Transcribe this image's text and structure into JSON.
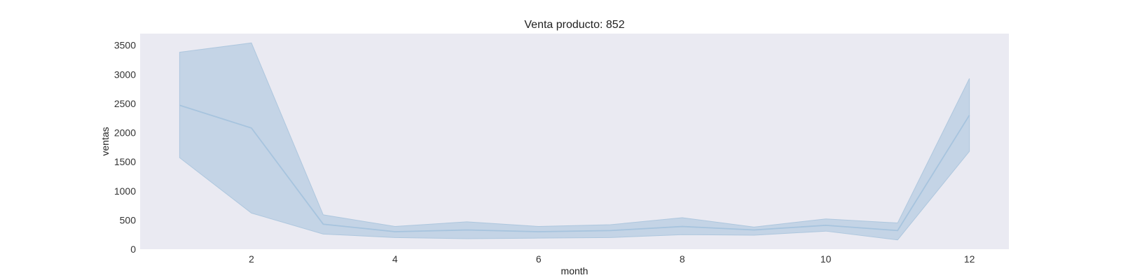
{
  "chart_data": {
    "type": "line",
    "title": "Venta producto: 852",
    "xlabel": "month",
    "ylabel": "ventas",
    "xlim": [
      0.45,
      12.55
    ],
    "ylim": [
      0,
      3700
    ],
    "x_ticks": [
      2,
      4,
      6,
      8,
      10,
      12
    ],
    "y_ticks": [
      0,
      500,
      1000,
      1500,
      2000,
      2500,
      3000,
      3500
    ],
    "grid": false,
    "legend": "none",
    "series": [
      {
        "x": [
          1,
          2,
          3,
          4,
          5,
          6,
          7,
          8,
          9,
          10,
          11,
          12
        ],
        "values": [
          2470,
          2080,
          430,
          300,
          330,
          300,
          320,
          390,
          330,
          410,
          320,
          2300
        ],
        "band_lower": [
          1570,
          620,
          260,
          200,
          180,
          190,
          200,
          250,
          240,
          310,
          160,
          1680
        ],
        "band_upper": [
          3380,
          3540,
          590,
          390,
          470,
          390,
          420,
          540,
          380,
          520,
          450,
          2930
        ]
      }
    ],
    "colors": {
      "plot_background": "#eaeaf2",
      "line": "#a7c4de",
      "band_fill": "#c2d3e5",
      "band_edge": "#aec7de"
    }
  }
}
